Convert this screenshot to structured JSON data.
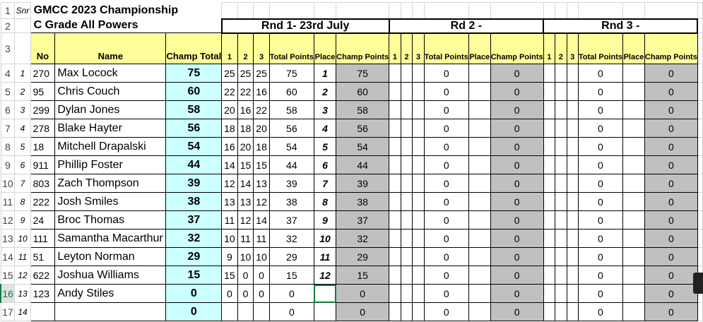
{
  "sheet": {
    "snr_label": "Snr",
    "title": "GMCC 2023 Championship",
    "subtitle": "C Grade All Powers",
    "rounds": [
      "Rnd 1- 23rd July",
      "Rd 2 -",
      "Rnd 3 -"
    ],
    "headers": {
      "no": "No",
      "name": "Name",
      "champ_total": "Champ Total",
      "s1": "1",
      "s2": "2",
      "s3": "3",
      "total_points": "Total Points",
      "place": "Place",
      "champ_points": "Champ Points"
    },
    "row_numbers": [
      "1",
      "2",
      "3",
      "4",
      "5",
      "6",
      "7",
      "8",
      "9",
      "10",
      "11",
      "12",
      "13",
      "14",
      "15",
      "16",
      "17"
    ],
    "selected_row": "16",
    "colors": {
      "header_yellow": "#ffff99",
      "champ_cyan": "#ccffff",
      "champ_points_grey": "#c0c0c0",
      "selection_green": "#107c41"
    },
    "rows": [
      {
        "snr": "1",
        "no": "270",
        "name": "Max Locock",
        "champ": "75",
        "r1": [
          "25",
          "25",
          "25",
          "75",
          "1",
          "75"
        ],
        "r2": [
          "",
          "",
          "",
          "0",
          "",
          "0"
        ],
        "r3": [
          "",
          "",
          "",
          "0",
          "",
          "0"
        ]
      },
      {
        "snr": "2",
        "no": "95",
        "name": "Chris Couch",
        "champ": "60",
        "r1": [
          "22",
          "22",
          "16",
          "60",
          "2",
          "60"
        ],
        "r2": [
          "",
          "",
          "",
          "0",
          "",
          "0"
        ],
        "r3": [
          "",
          "",
          "",
          "0",
          "",
          "0"
        ]
      },
      {
        "snr": "3",
        "no": "299",
        "name": "Dylan Jones",
        "champ": "58",
        "r1": [
          "20",
          "16",
          "22",
          "58",
          "3",
          "58"
        ],
        "r2": [
          "",
          "",
          "",
          "0",
          "",
          "0"
        ],
        "r3": [
          "",
          "",
          "",
          "0",
          "",
          "0"
        ]
      },
      {
        "snr": "4",
        "no": "278",
        "name": "Blake Hayter",
        "champ": "56",
        "r1": [
          "18",
          "18",
          "20",
          "56",
          "4",
          "56"
        ],
        "r2": [
          "",
          "",
          "",
          "0",
          "",
          "0"
        ],
        "r3": [
          "",
          "",
          "",
          "0",
          "",
          "0"
        ]
      },
      {
        "snr": "5",
        "no": "18",
        "name": "Mitchell Drapalski",
        "champ": "54",
        "r1": [
          "16",
          "20",
          "18",
          "54",
          "5",
          "54"
        ],
        "r2": [
          "",
          "",
          "",
          "0",
          "",
          "0"
        ],
        "r3": [
          "",
          "",
          "",
          "0",
          "",
          "0"
        ]
      },
      {
        "snr": "6",
        "no": "911",
        "name": "Phillip Foster",
        "champ": "44",
        "r1": [
          "14",
          "15",
          "15",
          "44",
          "6",
          "44"
        ],
        "r2": [
          "",
          "",
          "",
          "0",
          "",
          "0"
        ],
        "r3": [
          "",
          "",
          "",
          "0",
          "",
          "0"
        ]
      },
      {
        "snr": "7",
        "no": "803",
        "name": "Zach Thompson",
        "champ": "39",
        "r1": [
          "12",
          "14",
          "13",
          "39",
          "7",
          "39"
        ],
        "r2": [
          "",
          "",
          "",
          "0",
          "",
          "0"
        ],
        "r3": [
          "",
          "",
          "",
          "0",
          "",
          "0"
        ]
      },
      {
        "snr": "8",
        "no": "222",
        "name": "Josh Smiles",
        "champ": "38",
        "r1": [
          "13",
          "13",
          "12",
          "38",
          "8",
          "38"
        ],
        "r2": [
          "",
          "",
          "",
          "0",
          "",
          "0"
        ],
        "r3": [
          "",
          "",
          "",
          "0",
          "",
          "0"
        ]
      },
      {
        "snr": "9",
        "no": "24",
        "name": "Broc Thomas",
        "champ": "37",
        "r1": [
          "11",
          "12",
          "14",
          "37",
          "9",
          "37"
        ],
        "r2": [
          "",
          "",
          "",
          "0",
          "",
          "0"
        ],
        "r3": [
          "",
          "",
          "",
          "0",
          "",
          "0"
        ]
      },
      {
        "snr": "10",
        "no": "111",
        "name": "Samantha Macarthur",
        "champ": "32",
        "r1": [
          "10",
          "11",
          "11",
          "32",
          "10",
          "32"
        ],
        "r2": [
          "",
          "",
          "",
          "0",
          "",
          "0"
        ],
        "r3": [
          "",
          "",
          "",
          "0",
          "",
          "0"
        ]
      },
      {
        "snr": "11",
        "no": "51",
        "name": "Leyton Norman",
        "champ": "29",
        "r1": [
          "9",
          "10",
          "10",
          "29",
          "11",
          "29"
        ],
        "r2": [
          "",
          "",
          "",
          "0",
          "",
          "0"
        ],
        "r3": [
          "",
          "",
          "",
          "0",
          "",
          "0"
        ]
      },
      {
        "snr": "12",
        "no": "622",
        "name": "Joshua Williams",
        "champ": "15",
        "r1": [
          "15",
          "0",
          "0",
          "15",
          "12",
          "15"
        ],
        "r2": [
          "",
          "",
          "",
          "0",
          "",
          "0"
        ],
        "r3": [
          "",
          "",
          "",
          "0",
          "",
          "0"
        ]
      },
      {
        "snr": "13",
        "no": "123",
        "name": "Andy Stiles",
        "champ": "0",
        "r1": [
          "0",
          "0",
          "0",
          "0",
          "",
          "0"
        ],
        "r2": [
          "",
          "",
          "",
          "0",
          "",
          "0"
        ],
        "r3": [
          "",
          "",
          "",
          "0",
          "",
          "0"
        ]
      },
      {
        "snr": "14",
        "no": "",
        "name": "",
        "champ": "0",
        "r1": [
          "",
          "",
          "",
          "0",
          "",
          "0"
        ],
        "r2": [
          "",
          "",
          "",
          "0",
          "",
          "0"
        ],
        "r3": [
          "",
          "",
          "",
          "0",
          "",
          "0"
        ]
      }
    ]
  }
}
